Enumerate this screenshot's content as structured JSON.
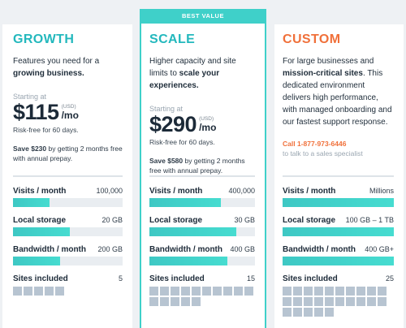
{
  "plans": {
    "growth": {
      "title": "GROWTH",
      "desc_plain": "Features you need for a ",
      "desc_bold": "growing business.",
      "starting": "Starting at",
      "price": "$115",
      "usd": "(USD)",
      "per": "/mo",
      "riskfree": "Risk-free for 60 days.",
      "save_bold": "Save $230",
      "save_rest": " by getting 2 months free with annual prepay.",
      "metrics": {
        "visits": {
          "label": "Visits / month",
          "value": "100,000",
          "fill": 0.33
        },
        "storage": {
          "label": "Local storage",
          "value": "20 GB",
          "fill": 0.52
        },
        "bandwidth": {
          "label": "Bandwidth / month",
          "value": "200 GB",
          "fill": 0.43
        },
        "sites": {
          "label": "Sites included",
          "value": "5",
          "count": 5
        }
      }
    },
    "scale": {
      "badge": "BEST VALUE",
      "title": "SCALE",
      "desc_plain": "Higher capacity and site limits to ",
      "desc_bold": "scale your experiences.",
      "starting": "Starting at",
      "price": "$290",
      "usd": "(USD)",
      "per": "/mo",
      "riskfree": "Risk-free for 60 days.",
      "save_bold": "Save $580",
      "save_rest": " by getting 2 months free with annual prepay.",
      "metrics": {
        "visits": {
          "label": "Visits / month",
          "value": "400,000",
          "fill": 0.68
        },
        "storage": {
          "label": "Local storage",
          "value": "30 GB",
          "fill": 0.82
        },
        "bandwidth": {
          "label": "Bandwidth / month",
          "value": "400 GB",
          "fill": 0.74
        },
        "sites": {
          "label": "Sites included",
          "value": "15",
          "count": 15
        }
      }
    },
    "custom": {
      "title": "CUSTOM",
      "desc_plain1": "For large businesses and ",
      "desc_bold": "mission-critical sites",
      "desc_plain2": ". This dedicated environment delivers high performance, with managed onboarding and our fastest support response.",
      "call": "Call 1-877-973-6446",
      "call_sub": "to talk to a sales specialist",
      "metrics": {
        "visits": {
          "label": "Visits / month",
          "value": "Millions",
          "fill": 1.0
        },
        "storage": {
          "label": "Local storage",
          "value": "100 GB – 1 TB",
          "fill": 1.0
        },
        "bandwidth": {
          "label": "Bandwidth / month",
          "value": "400 GB+",
          "fill": 1.0
        },
        "sites": {
          "label": "Sites included",
          "value": "25",
          "count": 25
        }
      }
    }
  },
  "colors": {
    "teal": "#3fd0c9",
    "title_teal": "#23b8bd",
    "orange": "#f0703a",
    "square": "#b7c4d1"
  }
}
